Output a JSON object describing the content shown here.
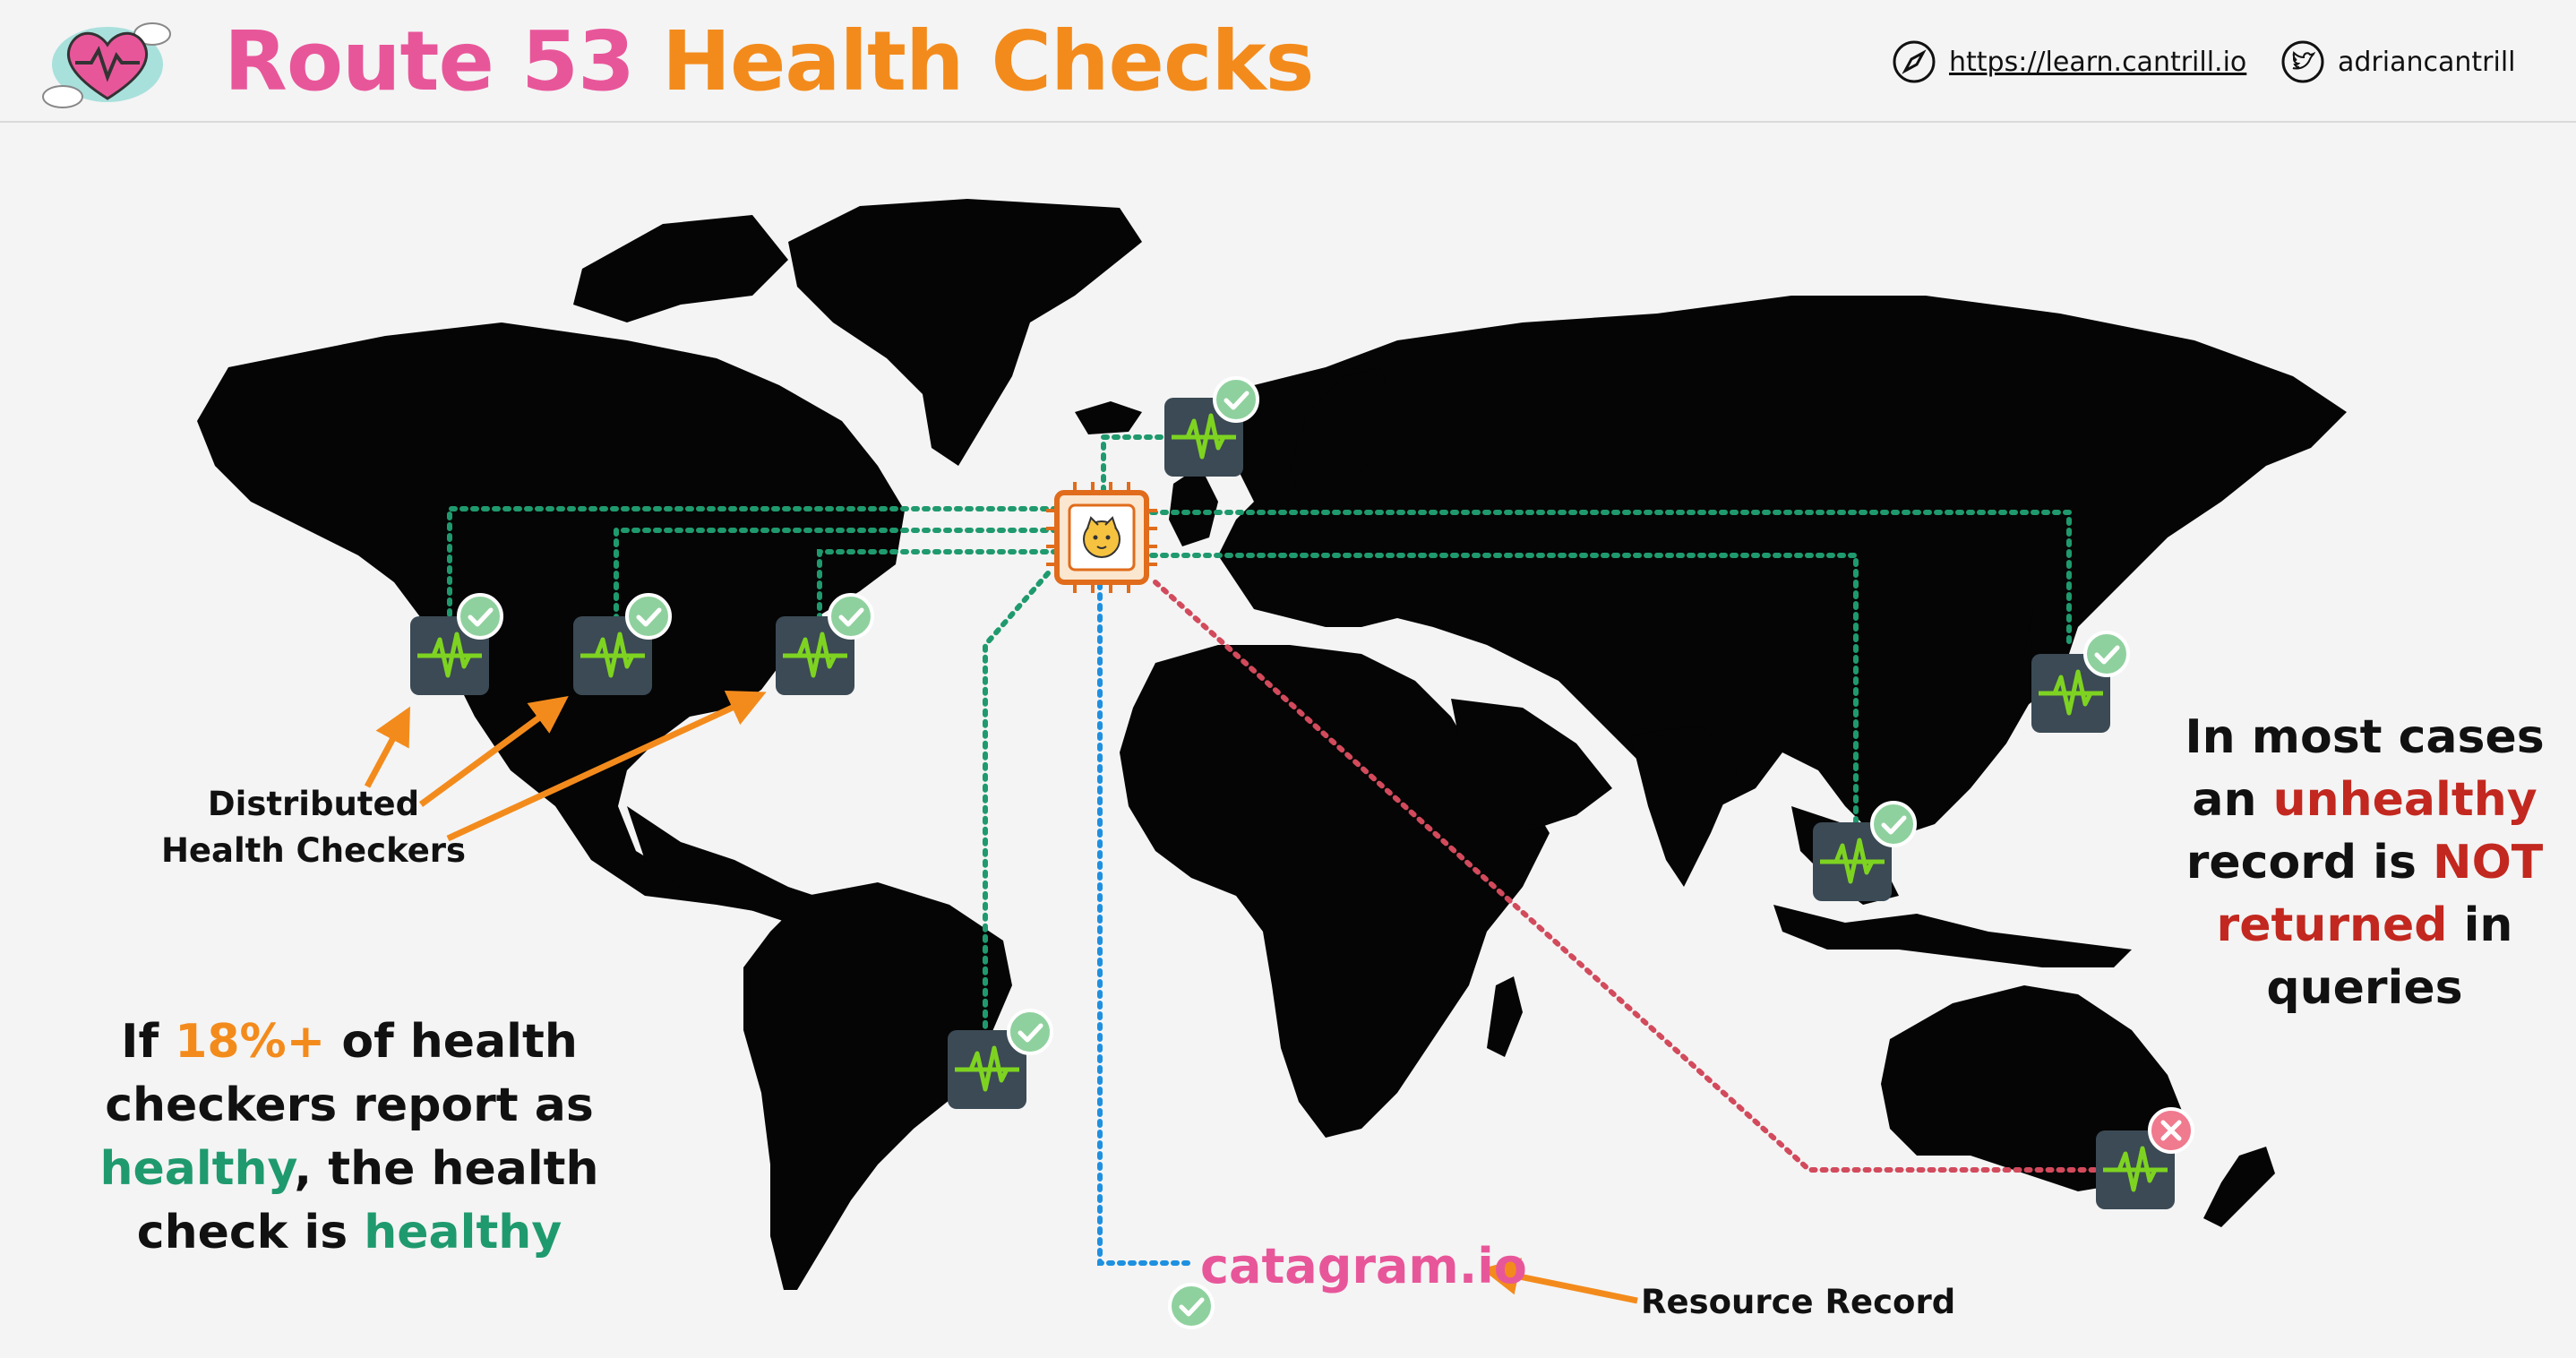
{
  "header": {
    "title_part1": "Route 53",
    "title_part2": "Health Checks",
    "site_link": "https://learn.cantrill.io",
    "twitter_handle": "adriancantrill"
  },
  "labels": {
    "distributed_line1": "Distributed",
    "distributed_line2": "Health Checkers",
    "resource_record": "Resource Record",
    "domain": "catagram.io"
  },
  "rule_text": {
    "prefix": "If ",
    "threshold": "18%+",
    "middle": " of health checkers report as ",
    "healthy_word": "healthy",
    "suffix": ",  the health check is ",
    "healthy_word2": "healthy"
  },
  "note_text": {
    "line1": "In most cases",
    "an": "an ",
    "unhealthy": "unhealthy",
    "record_is": "record is ",
    "not": "NOT",
    "returned": "returned",
    "in": " in",
    "queries": "queries"
  },
  "colors": {
    "pink": "#e8569a",
    "orange": "#f38b1c",
    "green": "#1f9a6e",
    "red": "#c2281f",
    "healthy_badge": "#8fd19e",
    "unhealthy_badge": "#f07a8e",
    "checker_box": "#3b4a55",
    "waveform": "#7ed321",
    "dotted_green": "#1f9a6e",
    "dotted_blue": "#1e90e0",
    "dotted_red": "#d24a5c"
  },
  "checkers": [
    {
      "id": "us-west",
      "status": "healthy"
    },
    {
      "id": "us-central",
      "status": "healthy"
    },
    {
      "id": "us-east",
      "status": "healthy"
    },
    {
      "id": "europe-north",
      "status": "healthy"
    },
    {
      "id": "south-america",
      "status": "healthy"
    },
    {
      "id": "asia-japan",
      "status": "healthy"
    },
    {
      "id": "asia-southeast",
      "status": "healthy"
    },
    {
      "id": "australia",
      "status": "unhealthy"
    }
  ],
  "icons": {
    "logo": "heart-monitor-cloud-icon",
    "site": "compass-icon",
    "twitter": "twitter-bird-icon",
    "resource": "server-chip-cat-icon",
    "checker": "health-pulse-icon",
    "status_ok": "check-circle-icon",
    "status_fail": "cross-circle-icon"
  }
}
